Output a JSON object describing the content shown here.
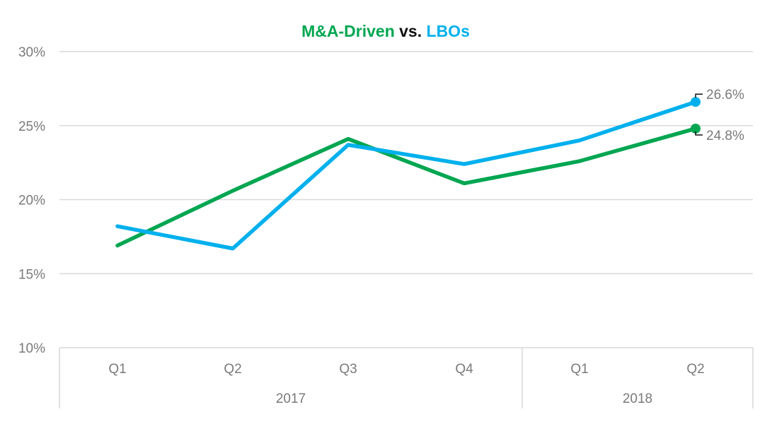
{
  "chart_data": {
    "type": "line",
    "title_parts": [
      {
        "text": "M&A-Driven",
        "color": "#00a651"
      },
      {
        "text": " vs. ",
        "color": "#111111"
      },
      {
        "text": "LBOs",
        "color": "#00b0ed"
      }
    ],
    "categories": [
      "Q1",
      "Q2",
      "Q3",
      "Q4",
      "Q1",
      "Q2"
    ],
    "year_groups": [
      {
        "label": "2017",
        "span": 4
      },
      {
        "label": "2018",
        "span": 2
      }
    ],
    "series": [
      {
        "name": "M&A-Driven",
        "color": "#00a651",
        "values": [
          16.9,
          20.6,
          24.1,
          21.1,
          22.6,
          24.8
        ],
        "end_label": "24.8%"
      },
      {
        "name": "LBOs",
        "color": "#00b0ed",
        "values": [
          18.2,
          16.7,
          23.7,
          22.4,
          24.0,
          26.6
        ],
        "end_label": "26.6%"
      }
    ],
    "y_ticks": [
      "10%",
      "15%",
      "20%",
      "25%",
      "30%"
    ],
    "ylim": [
      10,
      30
    ],
    "grid": true,
    "grid_color": "#d9d9d9",
    "label_color": "#7a7a7a"
  }
}
